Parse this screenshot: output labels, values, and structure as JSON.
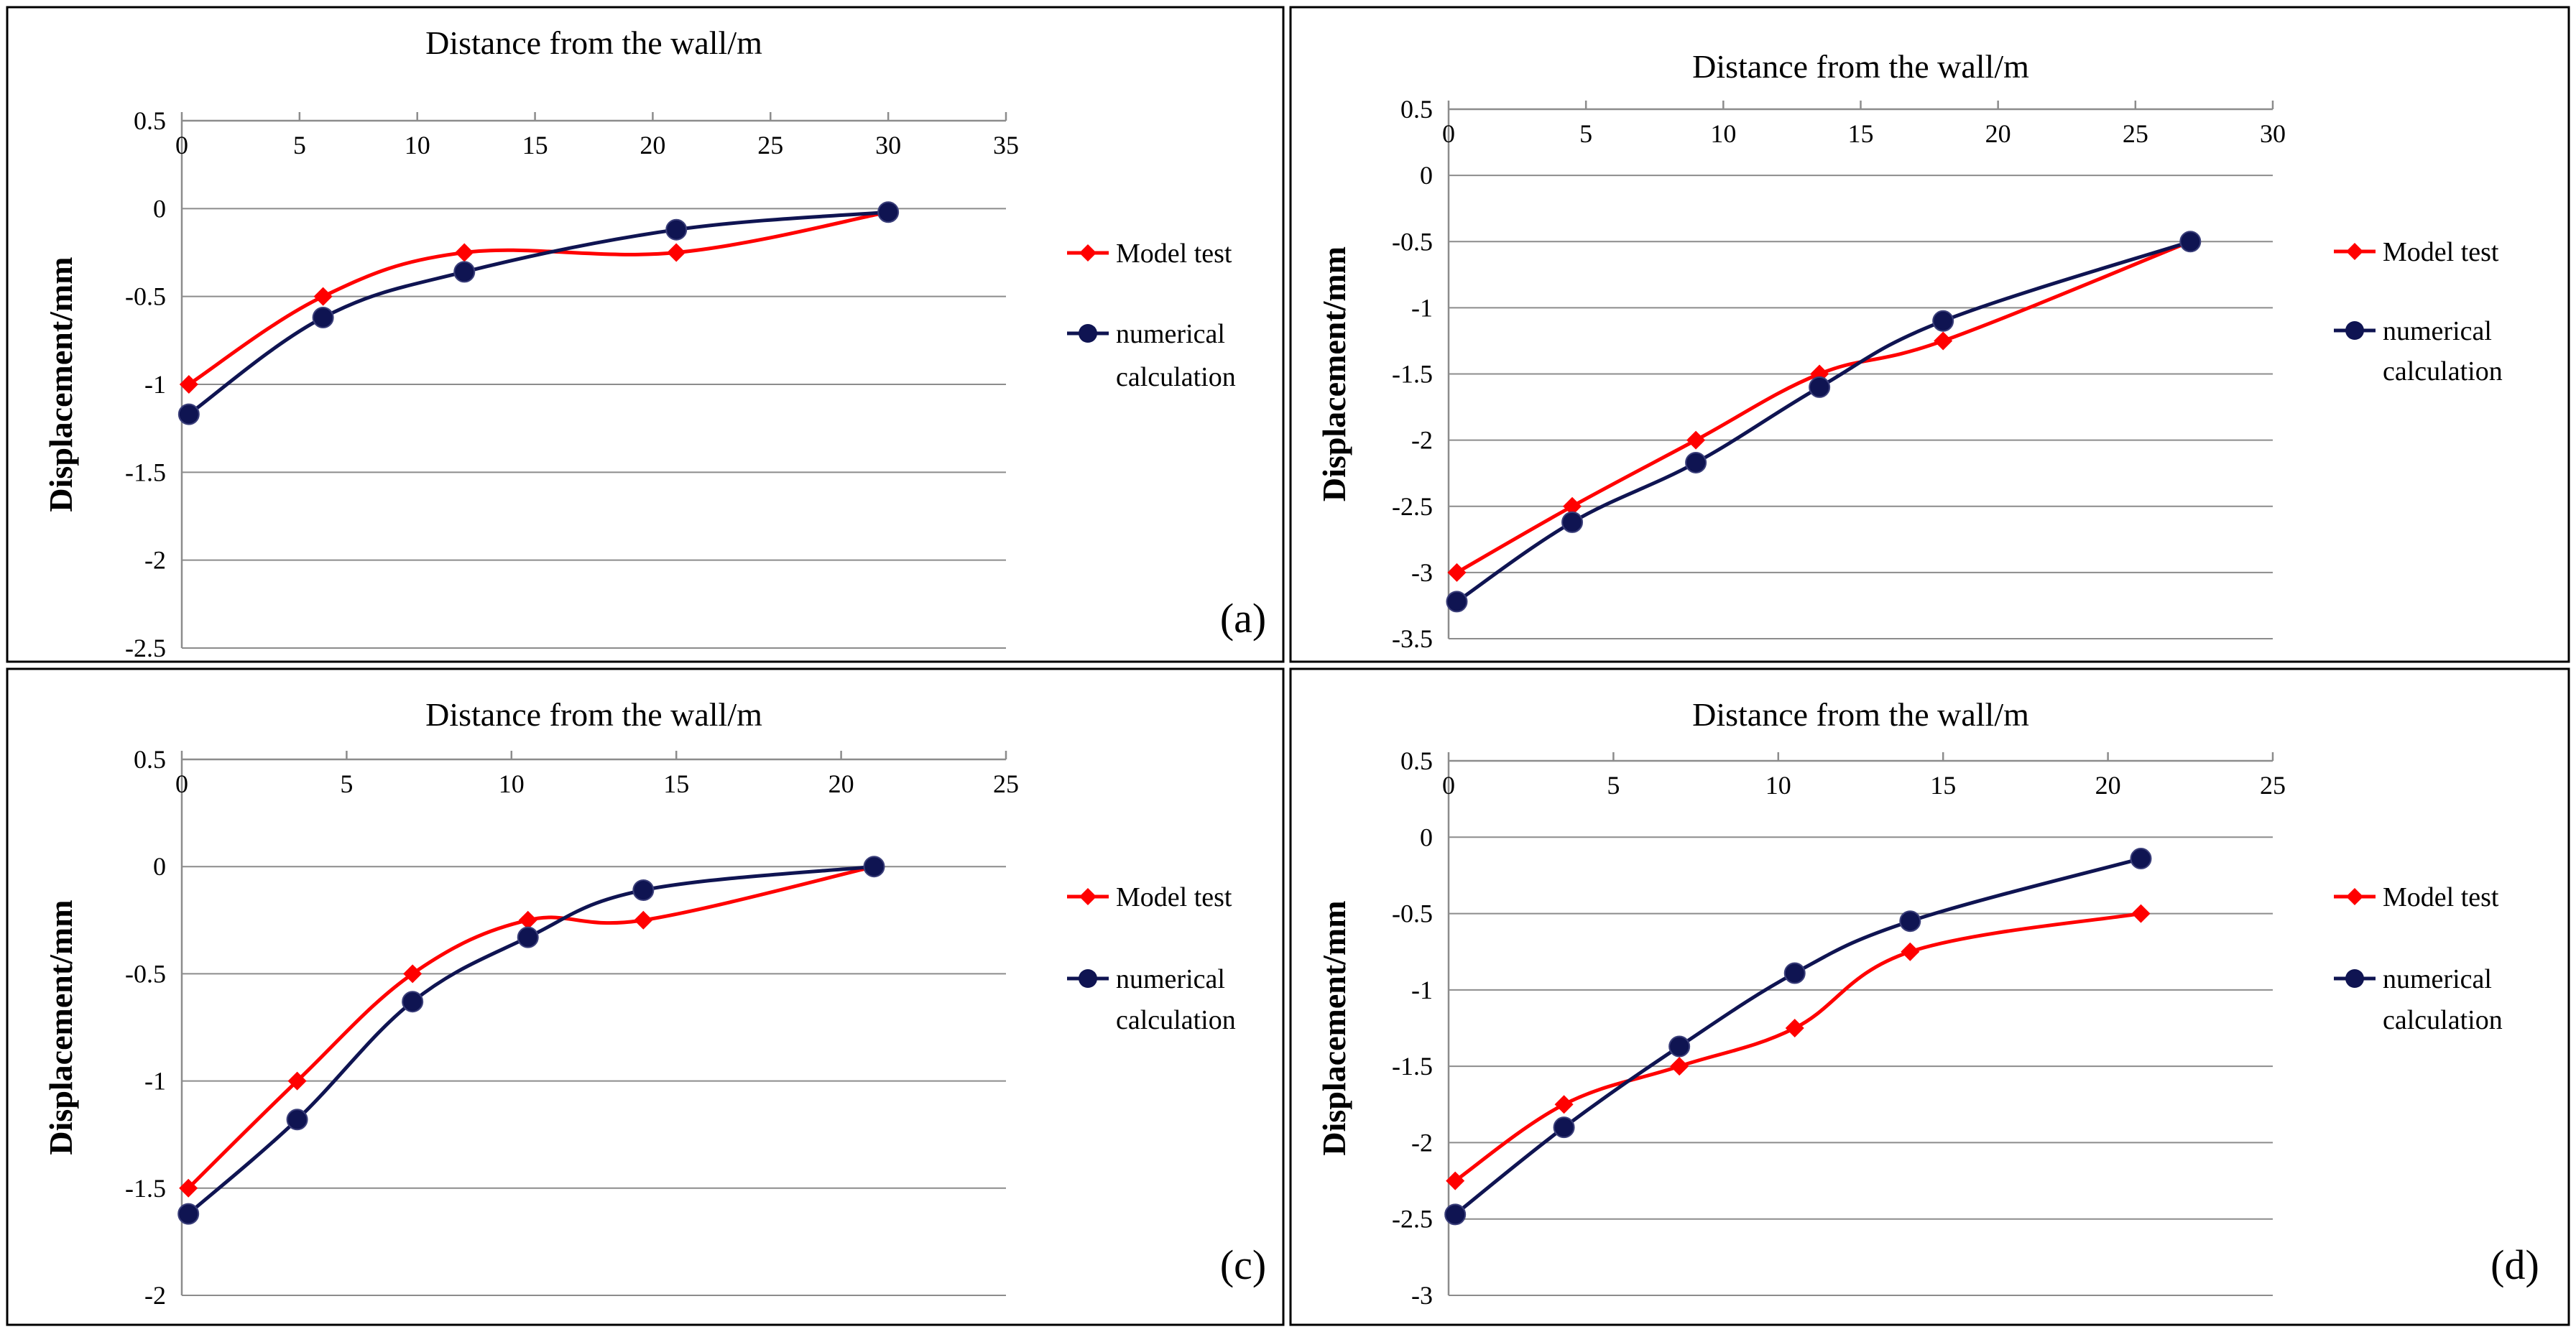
{
  "series_colors": {
    "model": "#ff0000",
    "numerical": "#0f1452"
  },
  "chart_data": [
    {
      "id": "a",
      "type": "line",
      "tag": "(a)",
      "title": "Distance from the wall/m",
      "xlabel": "Distance from the wall/m",
      "ylabel": "Displacement/mm",
      "xlim": [
        0,
        35
      ],
      "xticks": [
        0,
        5,
        10,
        15,
        20,
        25,
        30,
        35
      ],
      "ylim": [
        -2.5,
        0.5
      ],
      "yticks": [
        0.5,
        0,
        -0.5,
        -1,
        -1.5,
        -2,
        -2.5
      ],
      "legend": [
        "Model test",
        "numerical",
        "calculation"
      ],
      "series": [
        {
          "name": "Model test",
          "x": [
            0.3,
            6,
            12,
            21,
            30
          ],
          "y": [
            -1.0,
            -0.5,
            -0.25,
            -0.25,
            -0.02
          ]
        },
        {
          "name": "numerical calculation",
          "x": [
            0.3,
            6,
            12,
            21,
            30
          ],
          "y": [
            -1.17,
            -0.62,
            -0.36,
            -0.12,
            -0.02
          ]
        }
      ]
    },
    {
      "id": "b",
      "type": "line",
      "tag": "",
      "title": "Distance from the wall/m",
      "xlabel": "Distance from the wall/m",
      "ylabel": "Displacement/mm",
      "xlim": [
        0,
        30
      ],
      "xticks": [
        0,
        5,
        10,
        15,
        20,
        25,
        30
      ],
      "ylim": [
        -3.5,
        0.5
      ],
      "yticks": [
        0.5,
        0,
        -0.5,
        -1,
        -1.5,
        -2,
        -2.5,
        -3,
        -3.5
      ],
      "legend": [
        "Model test",
        "numerical",
        "calculation"
      ],
      "series": [
        {
          "name": "Model test",
          "x": [
            0.3,
            4.5,
            9,
            13.5,
            18,
            27
          ],
          "y": [
            -3.0,
            -2.5,
            -2.0,
            -1.5,
            -1.25,
            -0.5
          ]
        },
        {
          "name": "numerical calculation",
          "x": [
            0.3,
            4.5,
            9,
            13.5,
            18,
            27
          ],
          "y": [
            -3.22,
            -2.62,
            -2.17,
            -1.6,
            -1.1,
            -0.5
          ]
        }
      ]
    },
    {
      "id": "c",
      "type": "line",
      "tag": "(c)",
      "title": "Distance from the wall/m",
      "xlabel": "Distance from the wall/m",
      "ylabel": "Displacement/mm",
      "xlim": [
        0,
        25
      ],
      "xticks": [
        0,
        5,
        10,
        15,
        20,
        25
      ],
      "ylim": [
        -2,
        0.5
      ],
      "yticks": [
        0.5,
        0,
        -0.5,
        -1,
        -1.5,
        -2
      ],
      "legend": [
        "Model test",
        "numerical",
        "calculation"
      ],
      "series": [
        {
          "name": "Model test",
          "x": [
            0.2,
            3.5,
            7,
            10.5,
            14,
            21
          ],
          "y": [
            -1.5,
            -1.0,
            -0.5,
            -0.25,
            -0.25,
            0
          ]
        },
        {
          "name": "numerical calculation",
          "x": [
            0.2,
            3.5,
            7,
            10.5,
            14,
            21
          ],
          "y": [
            -1.62,
            -1.18,
            -0.63,
            -0.33,
            -0.11,
            0
          ]
        }
      ]
    },
    {
      "id": "d",
      "type": "line",
      "tag": "(d)",
      "title": "Distance from the wall/m",
      "xlabel": "Distance from the wall/m",
      "ylabel": "Displacement/mm",
      "xlim": [
        0,
        25
      ],
      "xticks": [
        0,
        5,
        10,
        15,
        20,
        25
      ],
      "ylim": [
        -3,
        0.5
      ],
      "yticks": [
        0.5,
        0,
        -0.5,
        -1,
        -1.5,
        -2,
        -2.5,
        -3
      ],
      "legend": [
        "Model test",
        "numerical",
        "calculation"
      ],
      "series": [
        {
          "name": "Model test",
          "x": [
            0.2,
            3.5,
            7,
            10.5,
            14,
            21
          ],
          "y": [
            -2.25,
            -1.75,
            -1.5,
            -1.25,
            -0.75,
            -0.5
          ]
        },
        {
          "name": "numerical calculation",
          "x": [
            0.2,
            3.5,
            7,
            10.5,
            14,
            21
          ],
          "y": [
            -2.47,
            -1.9,
            -1.37,
            -0.89,
            -0.55,
            -0.14
          ]
        }
      ]
    }
  ]
}
